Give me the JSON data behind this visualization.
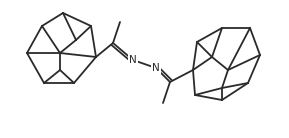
{
  "bg_color": "#ffffff",
  "line_color": "#2a2a2a",
  "line_width": 1.3,
  "figsize": [
    2.89,
    1.38
  ],
  "dpi": 100,
  "N_fontsize": 7.5
}
